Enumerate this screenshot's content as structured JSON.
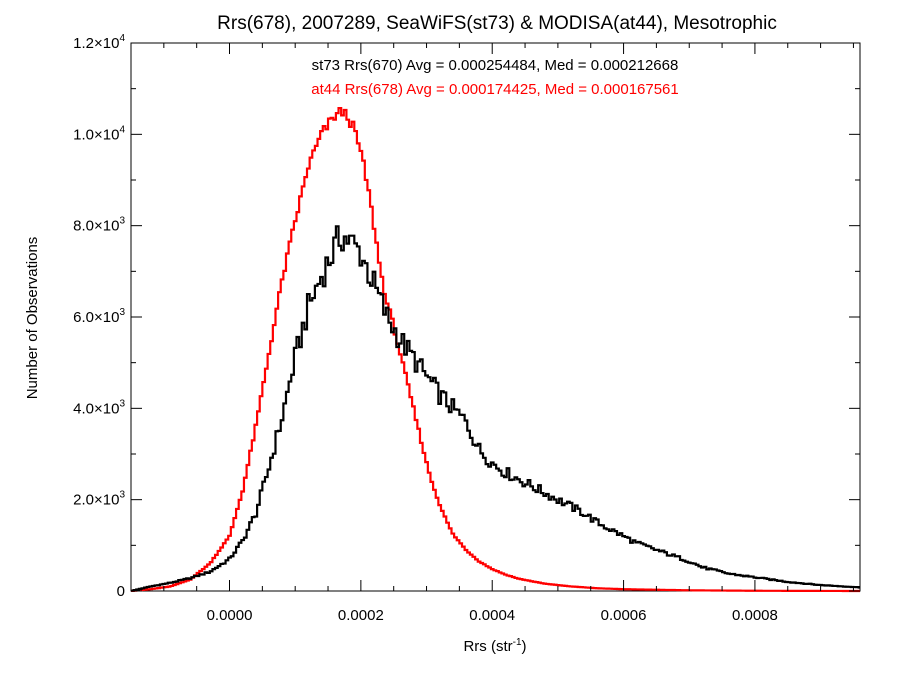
{
  "chart_data": {
    "type": "line",
    "title": "Rrs(678), 2007289, SeaWiFS(st73) & MODISA(at44), Mesotrophic",
    "xlabel": "Rrs (str",
    "xlabel_sup": "-1",
    "xlabel_end": ")",
    "ylabel": "Number of Observations",
    "xlim": [
      -0.00015,
      0.00096
    ],
    "ylim": [
      0,
      12000
    ],
    "x_ticks": [
      {
        "value": 0.0,
        "label": "0.0000"
      },
      {
        "value": 0.0002,
        "label": "0.0002"
      },
      {
        "value": 0.0004,
        "label": "0.0004"
      },
      {
        "value": 0.0006,
        "label": "0.0006"
      },
      {
        "value": 0.0008,
        "label": "0.0008"
      }
    ],
    "y_ticks": [
      {
        "value": 0,
        "mant": "0",
        "exp": ""
      },
      {
        "value": 2000,
        "mant": "2.0×10",
        "exp": "3"
      },
      {
        "value": 4000,
        "mant": "4.0×10",
        "exp": "3"
      },
      {
        "value": 6000,
        "mant": "6.0×10",
        "exp": "3"
      },
      {
        "value": 8000,
        "mant": "8.0×10",
        "exp": "3"
      },
      {
        "value": 10000,
        "mant": "1.0×10",
        "exp": "4"
      },
      {
        "value": 12000,
        "mant": "1.2×10",
        "exp": "4"
      }
    ],
    "grid": false,
    "legend_position": "top-center",
    "series": [
      {
        "name": "st73 Rrs(670) Avg = 0.000254484, Med = 0.000212668",
        "color": "#000000",
        "points": [
          [
            -0.00015,
            0
          ],
          [
            -0.00012,
            100
          ],
          [
            -9e-05,
            180
          ],
          [
            -6e-05,
            280
          ],
          [
            -3e-05,
            420
          ],
          [
            0.0,
            700
          ],
          [
            2e-05,
            1100
          ],
          [
            4e-05,
            1700
          ],
          [
            6e-05,
            2700
          ],
          [
            8e-05,
            3800
          ],
          [
            0.0001,
            5100
          ],
          [
            0.00012,
            6200
          ],
          [
            0.00014,
            6900
          ],
          [
            0.00016,
            7500
          ],
          [
            0.00017,
            7800
          ],
          [
            0.00018,
            7700
          ],
          [
            0.0002,
            7400
          ],
          [
            0.00022,
            6700
          ],
          [
            0.00024,
            6000
          ],
          [
            0.00026,
            5500
          ],
          [
            0.00028,
            5100
          ],
          [
            0.0003,
            4700
          ],
          [
            0.00032,
            4300
          ],
          [
            0.00034,
            4000
          ],
          [
            0.00036,
            3700
          ],
          [
            0.00038,
            3100
          ],
          [
            0.0004,
            2800
          ],
          [
            0.00042,
            2600
          ],
          [
            0.00044,
            2450
          ],
          [
            0.00046,
            2300
          ],
          [
            0.00048,
            2150
          ],
          [
            0.0005,
            2000
          ],
          [
            0.00052,
            1850
          ],
          [
            0.00054,
            1700
          ],
          [
            0.00056,
            1500
          ],
          [
            0.00058,
            1350
          ],
          [
            0.0006,
            1200
          ],
          [
            0.00062,
            1050
          ],
          [
            0.00064,
            950
          ],
          [
            0.00066,
            850
          ],
          [
            0.00068,
            750
          ],
          [
            0.0007,
            650
          ],
          [
            0.00072,
            520
          ],
          [
            0.00076,
            380
          ],
          [
            0.0008,
            300
          ],
          [
            0.00085,
            200
          ],
          [
            0.0009,
            130
          ],
          [
            0.00096,
            80
          ]
        ]
      },
      {
        "name": "at44 Rrs(678) Avg = 0.000174425, Med = 0.000167561",
        "color": "#ff0000",
        "points": [
          [
            -0.00015,
            0
          ],
          [
            -0.00012,
            40
          ],
          [
            -9e-05,
            100
          ],
          [
            -6e-05,
            250
          ],
          [
            -3e-05,
            600
          ],
          [
            0.0,
            1200
          ],
          [
            2e-05,
            2200
          ],
          [
            4e-05,
            3600
          ],
          [
            6e-05,
            5200
          ],
          [
            8e-05,
            6800
          ],
          [
            0.0001,
            8100
          ],
          [
            0.00012,
            9300
          ],
          [
            0.00014,
            10000
          ],
          [
            0.00016,
            10400
          ],
          [
            0.00017,
            10500
          ],
          [
            0.00018,
            10400
          ],
          [
            0.00019,
            10100
          ],
          [
            0.0002,
            9600
          ],
          [
            0.00021,
            8900
          ],
          [
            0.00022,
            8000
          ],
          [
            0.00023,
            7000
          ],
          [
            0.00024,
            6300
          ],
          [
            0.00025,
            5800
          ],
          [
            0.00026,
            5200
          ],
          [
            0.00027,
            4600
          ],
          [
            0.00028,
            4000
          ],
          [
            0.00029,
            3400
          ],
          [
            0.0003,
            2800
          ],
          [
            0.00031,
            2300
          ],
          [
            0.00032,
            1900
          ],
          [
            0.00033,
            1550
          ],
          [
            0.00034,
            1250
          ],
          [
            0.00036,
            900
          ],
          [
            0.00038,
            650
          ],
          [
            0.0004,
            480
          ],
          [
            0.00042,
            360
          ],
          [
            0.00044,
            270
          ],
          [
            0.00048,
            160
          ],
          [
            0.00052,
            100
          ],
          [
            0.00056,
            60
          ],
          [
            0.0006,
            40
          ],
          [
            0.0007,
            15
          ],
          [
            0.0008,
            5
          ],
          [
            0.00096,
            0
          ]
        ]
      }
    ]
  }
}
